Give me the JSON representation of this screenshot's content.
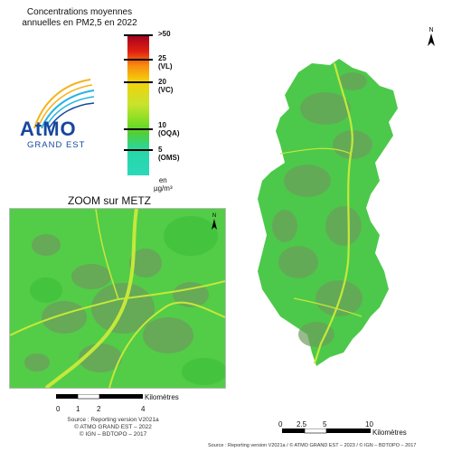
{
  "legend": {
    "title": "Concentrations moyennes annuelles en PM2,5 en 2022",
    "ticks": [
      {
        "value": ">50",
        "note": ""
      },
      {
        "value": "25",
        "note": "(VL)"
      },
      {
        "value": "20",
        "note": "(VC)"
      },
      {
        "value": "10",
        "note": "(OQA)"
      },
      {
        "value": "5",
        "note": "(OMS)"
      }
    ],
    "unit_line1": "en",
    "unit_line2": "µg/m³"
  },
  "logo": {
    "main": "AtMO",
    "sub": "GRAND EST",
    "colors": [
      "#f6b21b",
      "#27b4e3",
      "#17479e"
    ]
  },
  "zoom": {
    "title": "ZOOM sur METZ",
    "north": "N",
    "scale_label": "Kilomètres",
    "scale_ticks": [
      "0",
      "1",
      "2",
      "4"
    ],
    "source_lines": [
      "Source : Reporting version V2021a",
      "© ATMO GRAND EST – 2022",
      "© IGN – BDTOPO – 2017"
    ]
  },
  "main_map": {
    "north": "N",
    "scale_label": "Kilomètres",
    "scale_ticks": [
      "0",
      "2.5",
      "5",
      "10"
    ],
    "fill_color": "#4cc94a",
    "urban_color": "#6d9e5d",
    "road_color": "#c5e83a"
  },
  "footer": "Source : Reporting version V2021a / © ATMO GRAND EST – 2023 / © IGN – BDTOPO – 2017"
}
